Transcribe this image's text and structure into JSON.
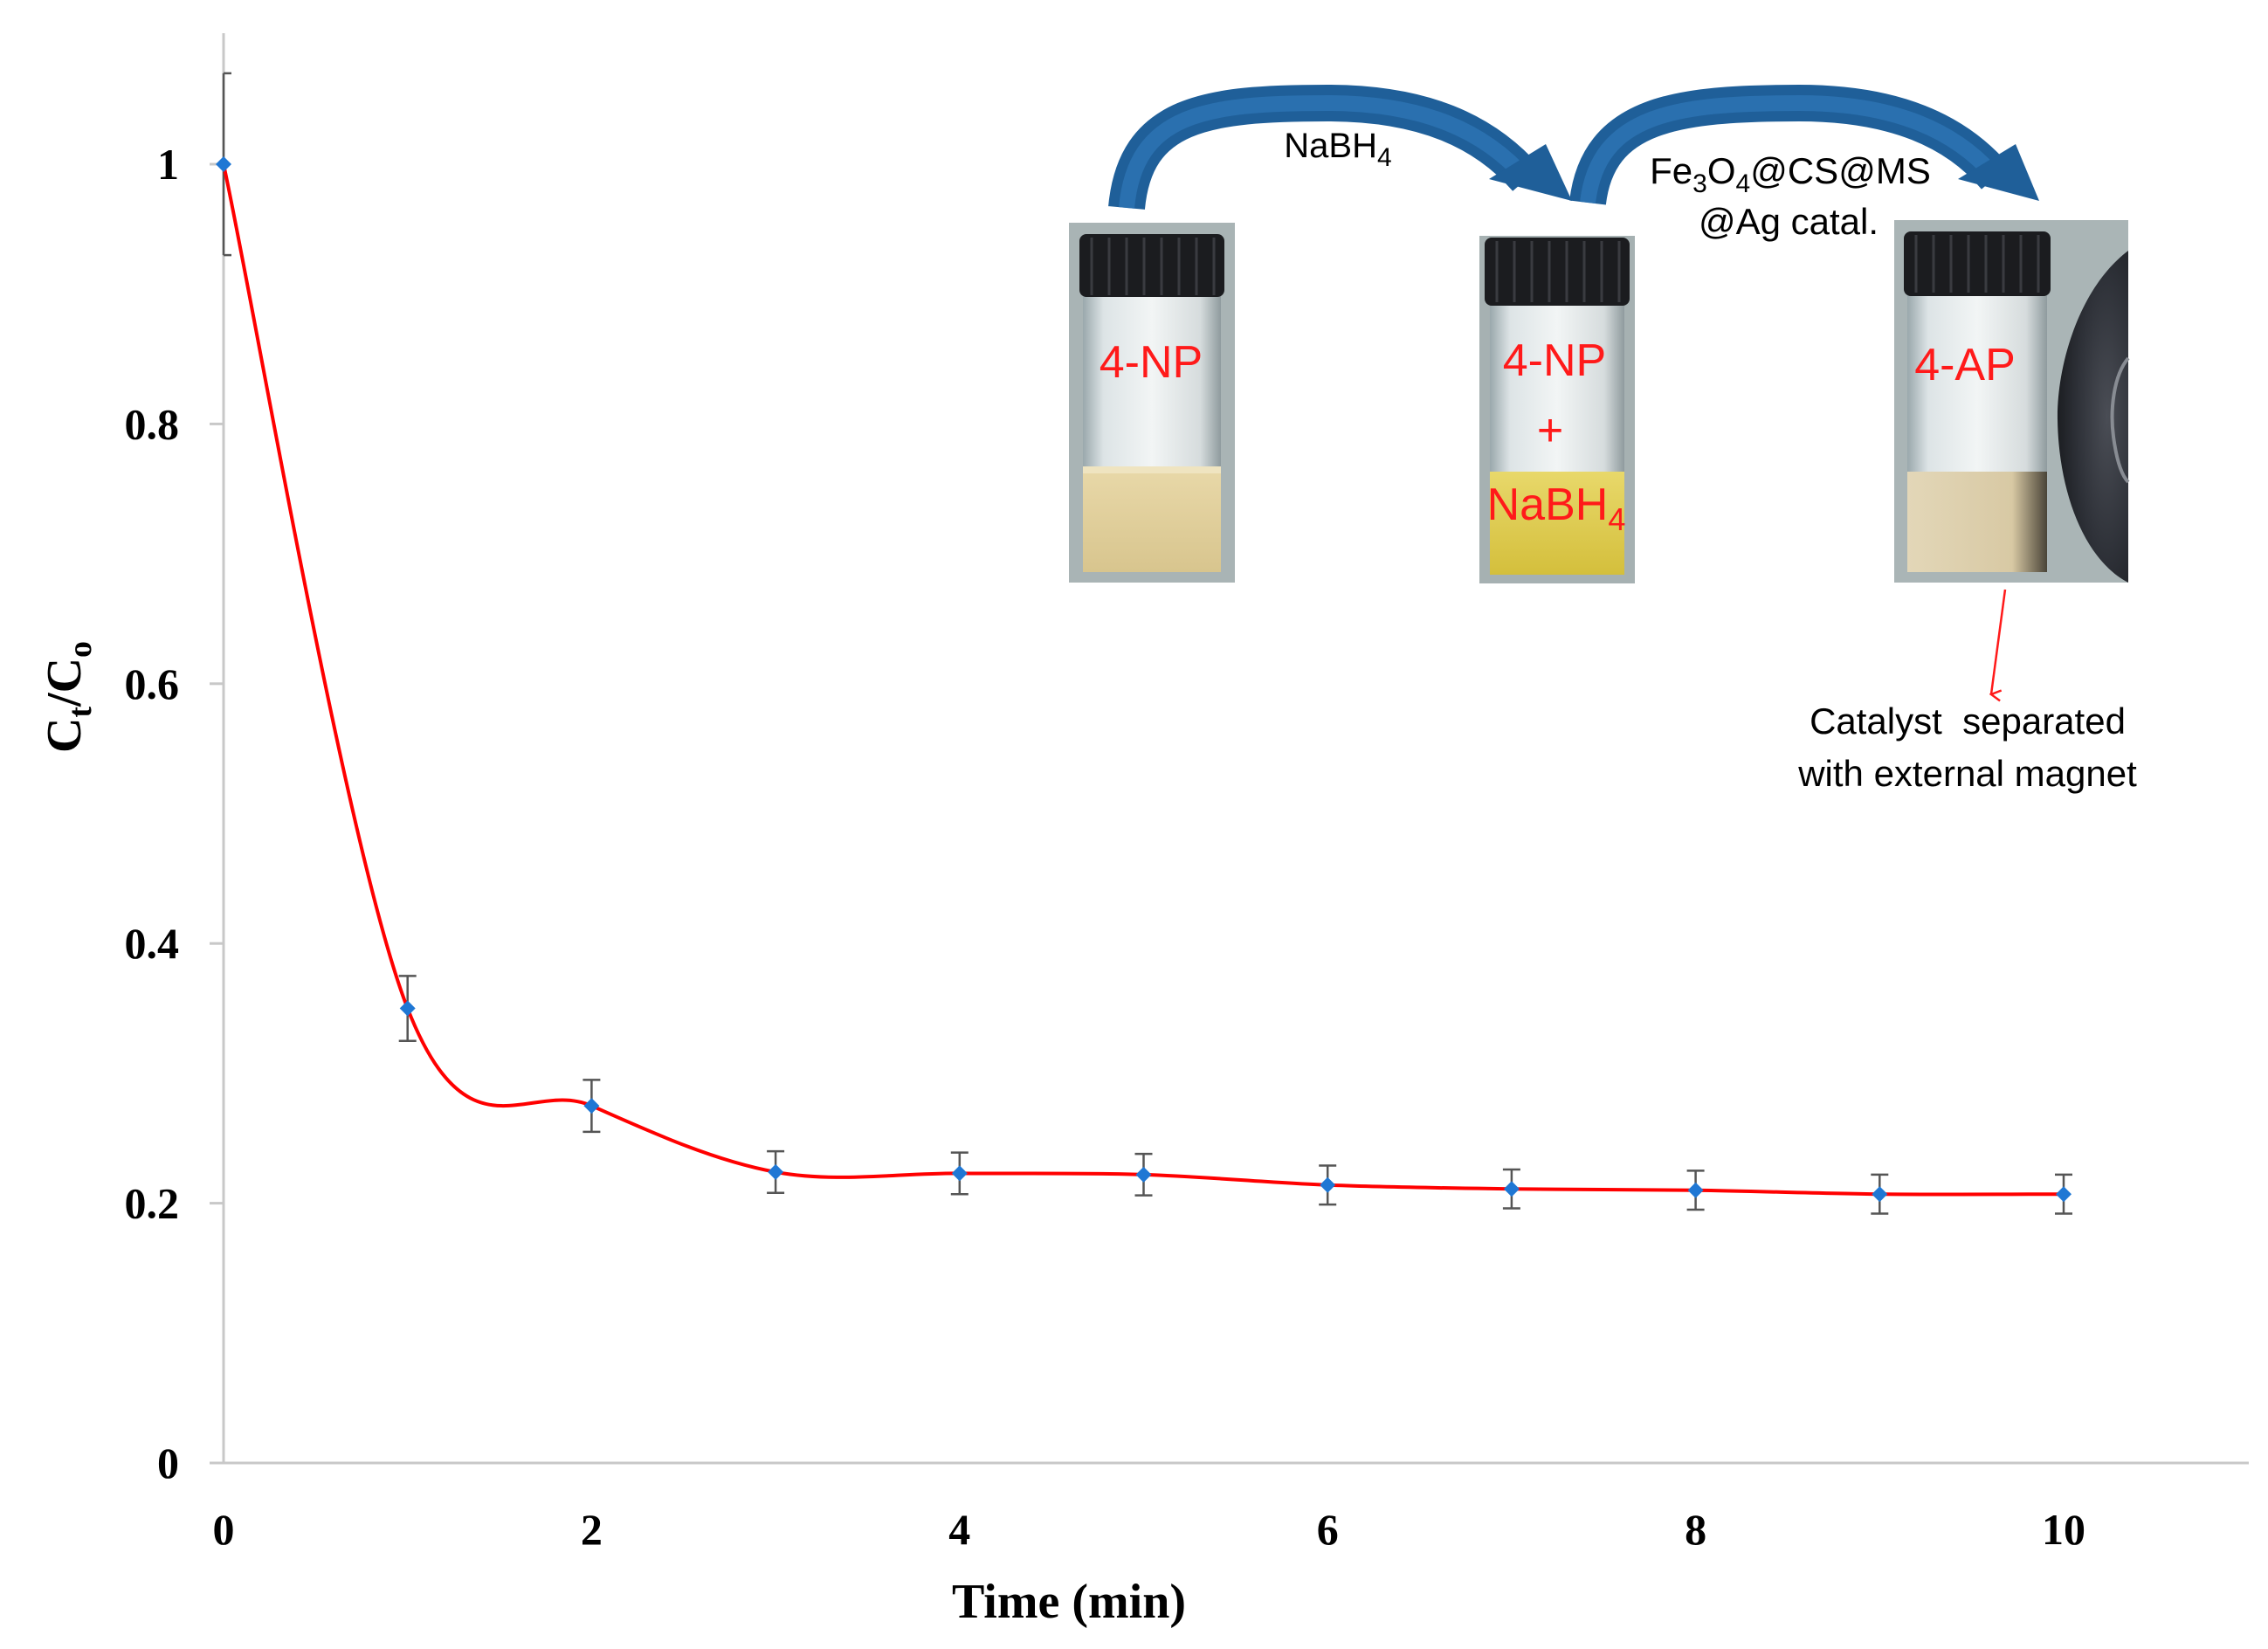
{
  "chart_data": {
    "type": "line",
    "title": "",
    "xlabel": "Time (min)",
    "ylabel": {
      "main": "C",
      "sub1": "t",
      "slash": "/C",
      "sub2": "o"
    },
    "xlim": [
      0,
      11
    ],
    "ylim": [
      0,
      1.1
    ],
    "xticks": [
      0,
      2,
      4,
      6,
      8,
      10
    ],
    "yticks": [
      0,
      0.2,
      0.4,
      0.6,
      0.8,
      1
    ],
    "ytick_labels": [
      "0",
      "0.2",
      "0.4",
      "0.6",
      "0.8",
      "1"
    ],
    "grid": false,
    "legend": "none",
    "series": [
      {
        "x": [
          0,
          1,
          2,
          3,
          4,
          5,
          6,
          7,
          8,
          9,
          10
        ],
        "y": [
          1.0,
          0.35,
          0.275,
          0.224,
          0.223,
          0.222,
          0.214,
          0.211,
          0.21,
          0.207,
          0.207
        ],
        "err": [
          0.07,
          0.025,
          0.02,
          0.016,
          0.016,
          0.016,
          0.015,
          0.015,
          0.015,
          0.015,
          0.015
        ],
        "line_color": "#ff0000",
        "marker_color": "#1f77d4"
      }
    ]
  },
  "inset": {
    "vial1_label": "4-NP",
    "vial2_label_line1": "4-NP",
    "vial2_label_line2": "+",
    "vial2_label_line3": "NaBH",
    "vial2_label_sub": "4",
    "vial3_label": "4-AP",
    "arrow1_label": "NaBH",
    "arrow1_label_sub": "4",
    "arrow2_label_line1_parts": [
      "Fe",
      "3",
      "O",
      "4",
      "@CS@MS"
    ],
    "arrow2_label_line2": "@Ag catal.",
    "note_line1": "Catalyst  separated",
    "note_line2": "with external magnet",
    "colors": {
      "arrow_blue": "#1f5f99",
      "vial_label_red": "#ff1a1a",
      "note_arrow_red": "#ff1a1a"
    }
  }
}
